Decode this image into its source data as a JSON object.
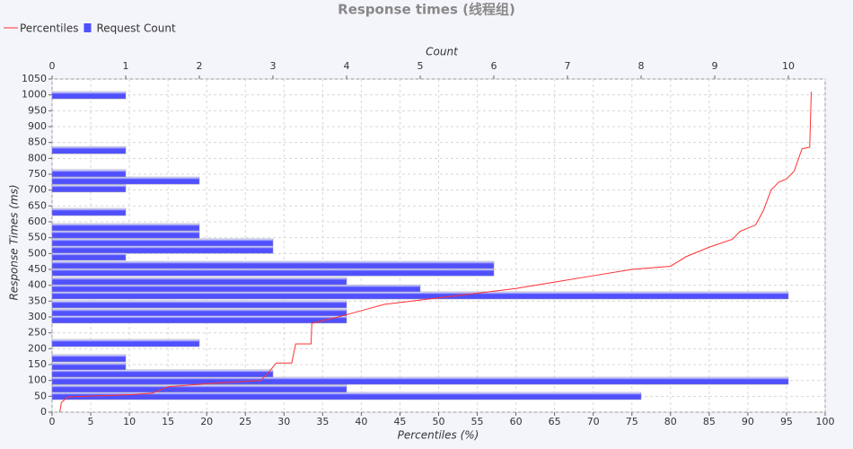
{
  "chart_data": {
    "type": "combo",
    "title": "Response times (线程组)",
    "x_label": "Percentiles (%)",
    "x2_label": "Count",
    "y_label": "Response Times (ms)",
    "legend": "top-left",
    "grid": true,
    "xlim": [
      0,
      100
    ],
    "xticks": [
      0,
      5,
      10,
      15,
      20,
      25,
      30,
      35,
      40,
      45,
      50,
      55,
      60,
      65,
      70,
      75,
      80,
      85,
      90,
      95,
      100
    ],
    "x2lim": [
      0,
      10.5
    ],
    "x2ticks": [
      0,
      1,
      2,
      3,
      4,
      5,
      6,
      7,
      8,
      9,
      10
    ],
    "ylim": [
      0,
      1050
    ],
    "yticks": [
      0,
      50,
      100,
      150,
      200,
      250,
      300,
      350,
      400,
      450,
      500,
      550,
      600,
      650,
      700,
      750,
      800,
      850,
      900,
      950,
      1000,
      1050
    ],
    "series": [
      {
        "name": "Percentiles",
        "type": "line",
        "color": "#ff3030",
        "x": [
          1,
          1.2,
          2,
          10,
          13,
          15,
          20,
          27,
          28,
          29,
          31,
          31.5,
          33.5,
          33.6,
          37,
          40,
          43,
          50,
          55,
          60,
          65,
          70,
          75,
          80,
          82,
          85,
          88,
          89,
          91,
          92,
          93,
          94,
          95,
          96,
          97,
          98,
          98.2
        ],
        "values": [
          0,
          30,
          48,
          55,
          60,
          80,
          90,
          100,
          125,
          155,
          155,
          215,
          215,
          280,
          300,
          320,
          340,
          360,
          375,
          390,
          410,
          430,
          450,
          460,
          490,
          520,
          545,
          570,
          590,
          635,
          700,
          725,
          735,
          760,
          830,
          835,
          1010
        ]
      },
      {
        "name": "Request Count",
        "type": "bar",
        "axis": "x2",
        "color": "#5050ff",
        "y": [
          999,
          826,
          753,
          730,
          705,
          631,
          583,
          560,
          535,
          512,
          490,
          464,
          441,
          413,
          390,
          368,
          340,
          314,
          292,
          218,
          170,
          144,
          122,
          99,
          74,
          51
        ],
        "values": [
          1,
          1,
          1,
          2,
          1,
          1,
          2,
          2,
          3,
          3,
          1,
          6,
          6,
          4,
          5,
          10,
          4,
          4,
          4,
          2,
          1,
          1,
          3,
          10,
          4,
          8
        ]
      }
    ]
  }
}
